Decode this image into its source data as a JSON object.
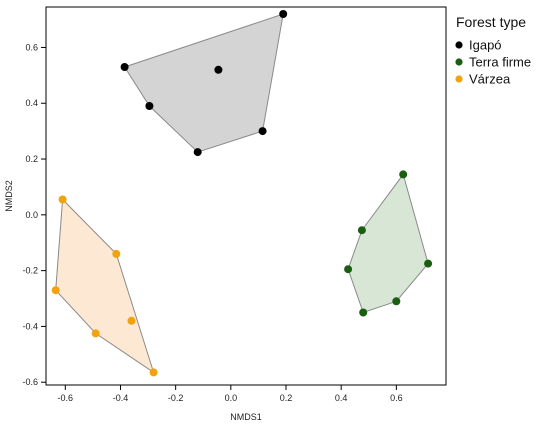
{
  "chart_data": {
    "type": "scatter",
    "xlabel": "NMDS1",
    "ylabel": "NMDS2",
    "xlim": [
      -0.67,
      0.78
    ],
    "ylim": [
      -0.61,
      0.745
    ],
    "xticks": [
      -0.6,
      -0.4,
      -0.2,
      0.0,
      0.2,
      0.4,
      0.6
    ],
    "xtick_labels": [
      "-0.6",
      "-0.4",
      "-0.2",
      "0.0",
      "0.2",
      "0.4",
      "0.6"
    ],
    "yticks": [
      -0.6,
      -0.4,
      -0.2,
      0.0,
      0.2,
      0.4,
      0.6
    ],
    "ytick_labels": [
      "-0.6",
      "-0.4",
      "-0.2",
      "0.0",
      "0.2",
      "0.4",
      "0.6"
    ],
    "grid": false,
    "legend": {
      "title": "Forest type",
      "placement": "right-top"
    },
    "series": [
      {
        "name": "Igapó",
        "color": "#000000",
        "hull_fill": "#d4d4d4",
        "points": [
          [
            0.19,
            0.72
          ],
          [
            -0.385,
            0.53
          ],
          [
            -0.045,
            0.52
          ],
          [
            -0.295,
            0.39
          ],
          [
            0.115,
            0.3
          ],
          [
            -0.12,
            0.225
          ]
        ],
        "hull": [
          [
            -0.385,
            0.53
          ],
          [
            0.19,
            0.72
          ],
          [
            0.115,
            0.3
          ],
          [
            -0.12,
            0.225
          ],
          [
            -0.295,
            0.39
          ]
        ]
      },
      {
        "name": "Terra firme",
        "color": "#1a5e10",
        "hull_fill": "#d7e6d5",
        "points": [
          [
            0.625,
            0.145
          ],
          [
            0.475,
            -0.055
          ],
          [
            0.425,
            -0.195
          ],
          [
            0.715,
            -0.175
          ],
          [
            0.6,
            -0.31
          ],
          [
            0.48,
            -0.35
          ]
        ],
        "hull": [
          [
            0.625,
            0.145
          ],
          [
            0.715,
            -0.175
          ],
          [
            0.6,
            -0.31
          ],
          [
            0.48,
            -0.35
          ],
          [
            0.425,
            -0.195
          ],
          [
            0.475,
            -0.055
          ]
        ]
      },
      {
        "name": "Várzea",
        "color": "#f2a20d",
        "hull_fill": "#fde9d3",
        "points": [
          [
            -0.61,
            0.055
          ],
          [
            -0.415,
            -0.14
          ],
          [
            -0.635,
            -0.27
          ],
          [
            -0.36,
            -0.38
          ],
          [
            -0.49,
            -0.425
          ],
          [
            -0.28,
            -0.565
          ]
        ],
        "hull": [
          [
            -0.61,
            0.055
          ],
          [
            -0.415,
            -0.14
          ],
          [
            -0.28,
            -0.565
          ],
          [
            -0.49,
            -0.425
          ],
          [
            -0.635,
            -0.27
          ]
        ]
      }
    ]
  }
}
